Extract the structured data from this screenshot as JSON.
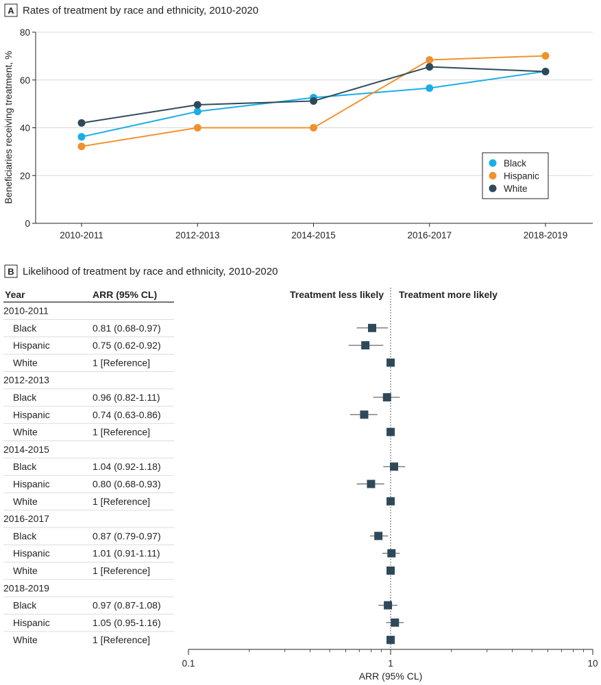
{
  "panel_a": {
    "letter": "A",
    "chart_data": {
      "type": "line",
      "title": "Rates of treatment by race and ethnicity, 2010-2020",
      "xlabel": "",
      "ylabel": "Beneficiaries receiving treatment, %",
      "categories": [
        "2010-2011",
        "2012-2013",
        "2014-2015",
        "2016-2017",
        "2018-2019"
      ],
      "ylim": [
        0,
        80
      ],
      "yticks": [
        0,
        20,
        40,
        60,
        80
      ],
      "grid": true,
      "legend_position": "bottom-right",
      "series": [
        {
          "name": "Black",
          "color": "#1aaee6",
          "values": [
            36.2,
            46.8,
            52.6,
            56.6,
            63.6
          ]
        },
        {
          "name": "Hispanic",
          "color": "#f0922b",
          "values": [
            32.2,
            40.0,
            40.0,
            68.4,
            70.1
          ]
        },
        {
          "name": "White",
          "color": "#2e4a5a",
          "values": [
            42.0,
            49.6,
            51.2,
            65.5,
            63.5
          ]
        }
      ]
    }
  },
  "panel_b": {
    "letter": "B",
    "title": "Likelihood of treatment by race and ethnicity, 2010-2020",
    "col_year": "Year",
    "col_arr": "ARR (95% CL)",
    "less_likely": "Treatment less likely",
    "more_likely": "Treatment more likely",
    "chart_data": {
      "type": "forest",
      "xlabel": "ARR (95% CL)",
      "xscale": "log",
      "xlim": [
        0.1,
        10
      ],
      "xticks": [
        0.1,
        1,
        10
      ],
      "xtick_labels": [
        "0.1",
        "1",
        "10"
      ],
      "reference": 1,
      "marker_color": "#2e4a5a",
      "groups": [
        {
          "year": "2010-2011",
          "rows": [
            {
              "label": "Black",
              "text": "0.81 (0.68-0.97)",
              "est": 0.81,
              "lo": 0.68,
              "hi": 0.97
            },
            {
              "label": "Hispanic",
              "text": "0.75 (0.62-0.92)",
              "est": 0.75,
              "lo": 0.62,
              "hi": 0.92
            },
            {
              "label": "White",
              "text": "1 [Reference]",
              "est": 1,
              "lo": 1,
              "hi": 1
            }
          ]
        },
        {
          "year": "2012-2013",
          "rows": [
            {
              "label": "Black",
              "text": "0.96 (0.82-1.11)",
              "est": 0.96,
              "lo": 0.82,
              "hi": 1.11
            },
            {
              "label": "Hispanic",
              "text": "0.74 (0.63-0.86)",
              "est": 0.74,
              "lo": 0.63,
              "hi": 0.86
            },
            {
              "label": "White",
              "text": "1 [Reference]",
              "est": 1,
              "lo": 1,
              "hi": 1
            }
          ]
        },
        {
          "year": "2014-2015",
          "rows": [
            {
              "label": "Black",
              "text": "1.04 (0.92-1.18)",
              "est": 1.04,
              "lo": 0.92,
              "hi": 1.18
            },
            {
              "label": "Hispanic",
              "text": "0.80 (0.68-0.93)",
              "est": 0.8,
              "lo": 0.68,
              "hi": 0.93
            },
            {
              "label": "White",
              "text": "1 [Reference]",
              "est": 1,
              "lo": 1,
              "hi": 1
            }
          ]
        },
        {
          "year": "2016-2017",
          "rows": [
            {
              "label": "Black",
              "text": "0.87 (0.79-0.97)",
              "est": 0.87,
              "lo": 0.79,
              "hi": 0.97
            },
            {
              "label": "Hispanic",
              "text": "1.01 (0.91-1.11)",
              "est": 1.01,
              "lo": 0.91,
              "hi": 1.11
            },
            {
              "label": "White",
              "text": "1 [Reference]",
              "est": 1,
              "lo": 1,
              "hi": 1
            }
          ]
        },
        {
          "year": "2018-2019",
          "rows": [
            {
              "label": "Black",
              "text": "0.97 (0.87-1.08)",
              "est": 0.97,
              "lo": 0.87,
              "hi": 1.08
            },
            {
              "label": "Hispanic",
              "text": "1.05 (0.95-1.16)",
              "est": 1.05,
              "lo": 0.95,
              "hi": 1.16
            },
            {
              "label": "White",
              "text": "1 [Reference]",
              "est": 1,
              "lo": 1,
              "hi": 1
            }
          ]
        }
      ]
    }
  }
}
